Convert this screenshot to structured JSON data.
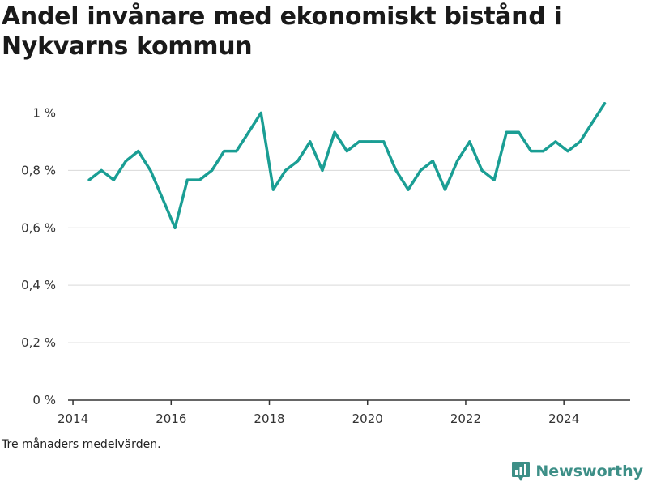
{
  "title": "Andel invånare med ekonomiskt bistånd i Nykvarns kommun",
  "footnote": "Tre månaders medelvärden.",
  "brand": {
    "name": "Newsworthy",
    "icon": "newsworthy-logo-icon",
    "color": "#3d8f87"
  },
  "colors": {
    "line": "#1a9e94",
    "grid": "#d9d9d9",
    "axis": "#333333"
  },
  "chart_data": {
    "type": "line",
    "title": "Andel invånare med ekonomiskt bistånd i Nykvarns kommun",
    "xlabel": "",
    "ylabel": "",
    "x_ticks": [
      "2014",
      "2016",
      "2018",
      "2020",
      "2022",
      "2024"
    ],
    "y_ticks": [
      "0 %",
      "0,2 %",
      "0,4 %",
      "0,6 %",
      "0,8 %",
      "1 %"
    ],
    "ylim": [
      0,
      1.1
    ],
    "xlim": [
      2013.9,
      2025.35
    ],
    "grid": "horizontal",
    "series": [
      {
        "x": [
          2014.33,
          2014.58,
          2014.83,
          2015.08,
          2015.33,
          2015.58,
          2015.83,
          2016.08,
          2016.33,
          2016.58,
          2016.83,
          2017.08,
          2017.33,
          2017.58,
          2017.83,
          2018.08,
          2018.33,
          2018.58,
          2018.83,
          2019.08,
          2019.33,
          2019.58,
          2019.83,
          2020.08,
          2020.33,
          2020.58,
          2020.83,
          2021.08,
          2021.33,
          2021.58,
          2021.83,
          2022.08,
          2022.33,
          2022.58,
          2022.83,
          2023.08,
          2023.33,
          2023.58,
          2023.83,
          2024.08,
          2024.33,
          2024.58,
          2024.83
        ],
        "values": [
          0.767,
          0.8,
          0.767,
          0.833,
          0.867,
          0.8,
          0.7,
          0.6,
          0.767,
          0.767,
          0.8,
          0.867,
          0.867,
          0.933,
          1.0,
          0.733,
          0.8,
          0.833,
          0.9,
          0.8,
          0.933,
          0.867,
          0.9,
          0.9,
          0.9,
          0.8,
          0.733,
          0.8,
          0.833,
          0.733,
          0.833,
          0.9,
          0.8,
          0.767,
          0.933,
          0.933,
          0.867,
          0.867,
          0.9,
          0.867,
          0.9,
          0.967,
          1.033
        ]
      }
    ]
  }
}
